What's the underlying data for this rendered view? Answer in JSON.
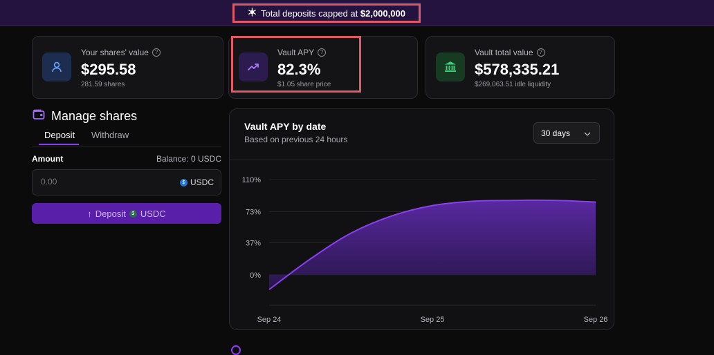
{
  "banner": {
    "text": "Total deposits capped at ",
    "amount": "$2,000,000",
    "icon": "snowflake-icon"
  },
  "stats": {
    "shares": {
      "label": "Your shares' value",
      "value": "$295.58",
      "sub": "281.59 shares",
      "icon": "user-icon",
      "color": "#1c2d4f"
    },
    "apy": {
      "label": "Vault APY",
      "value": "82.3%",
      "sub": "$1.05 share price",
      "icon": "trend-up-icon",
      "color": "#2c1b4f"
    },
    "total": {
      "label": "Vault total value",
      "value": "$578,335.21",
      "sub": "$269,063.51 idle liquidity",
      "icon": "bank-icon",
      "color": "#173b22"
    }
  },
  "manage": {
    "title": "Manage shares",
    "tabs": [
      "Deposit",
      "Withdraw"
    ],
    "amount_label": "Amount",
    "balance": "Balance: 0 USDC",
    "input_placeholder": "0.00",
    "currency": "USDC",
    "deposit_button": "Deposit",
    "deposit_currency": "USDC"
  },
  "chart": {
    "title": "Vault APY by date",
    "subtitle": "Based on previous 24 hours",
    "range": "30 days"
  },
  "chart_data": {
    "type": "area",
    "x": [
      "Sep 24",
      "Sep 24.25",
      "Sep 24.5",
      "Sep 24.75",
      "Sep 25",
      "Sep 25.25",
      "Sep 25.5",
      "Sep 25.75",
      "Sep 26"
    ],
    "x_ticks": [
      "Sep 24",
      "Sep 25",
      "Sep 26"
    ],
    "y": [
      -17,
      18,
      48,
      68,
      80,
      85,
      86,
      86,
      84
    ],
    "y_ticks": [
      "110%",
      "73%",
      "37%",
      "0%"
    ],
    "ylim": [
      -20,
      110
    ],
    "grid": true,
    "colors": {
      "line": "#8b3ff0",
      "fill_top": "#5d2aa8",
      "fill_bottom": "#2a1650"
    }
  }
}
